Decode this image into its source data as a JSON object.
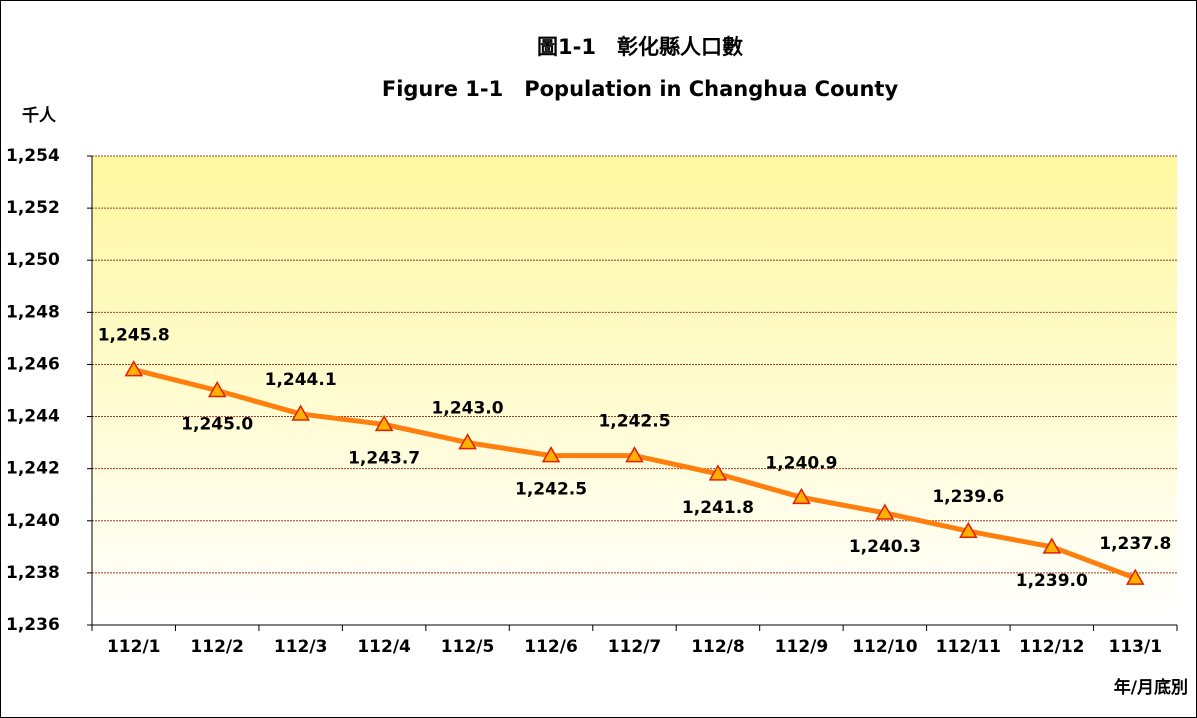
{
  "chart_data": {
    "type": "line",
    "title": "圖1-1　彰化縣人口數",
    "subtitle": "Figure 1-1　Population in Changhua County",
    "y_label": "千人",
    "x_label": "年/月底別",
    "categories": [
      "112/1",
      "112/2",
      "112/3",
      "112/4",
      "112/5",
      "112/6",
      "112/7",
      "112/8",
      "112/9",
      "112/10",
      "112/11",
      "112/12",
      "113/1"
    ],
    "series": [
      {
        "name": "Population",
        "color": "#ff7f0e",
        "values": [
          1245.8,
          1245.0,
          1244.1,
          1243.7,
          1243.0,
          1242.5,
          1242.5,
          1241.8,
          1240.9,
          1240.3,
          1239.6,
          1239.0,
          1237.8
        ],
        "value_labels": [
          "1,245.8",
          "1,245.0",
          "1,244.1",
          "1,243.7",
          "1,243.0",
          "1,242.5",
          "1,242.5",
          "1,241.8",
          "1,240.9",
          "1,240.3",
          "1,239.6",
          "1,239.0",
          "1,237.8"
        ]
      }
    ],
    "ylim": [
      1236,
      1254
    ],
    "yticks": [
      {
        "value": 1236,
        "label": "1,236"
      },
      {
        "value": 1238,
        "label": "1,238"
      },
      {
        "value": 1240,
        "label": "1,240"
      },
      {
        "value": 1242,
        "label": "1,242"
      },
      {
        "value": 1244,
        "label": "1,244"
      },
      {
        "value": 1246,
        "label": "1,246"
      },
      {
        "value": 1248,
        "label": "1,248"
      },
      {
        "value": 1250,
        "label": "1,250"
      },
      {
        "value": 1252,
        "label": "1,252"
      },
      {
        "value": 1254,
        "label": "1,254"
      }
    ],
    "grid": true
  }
}
